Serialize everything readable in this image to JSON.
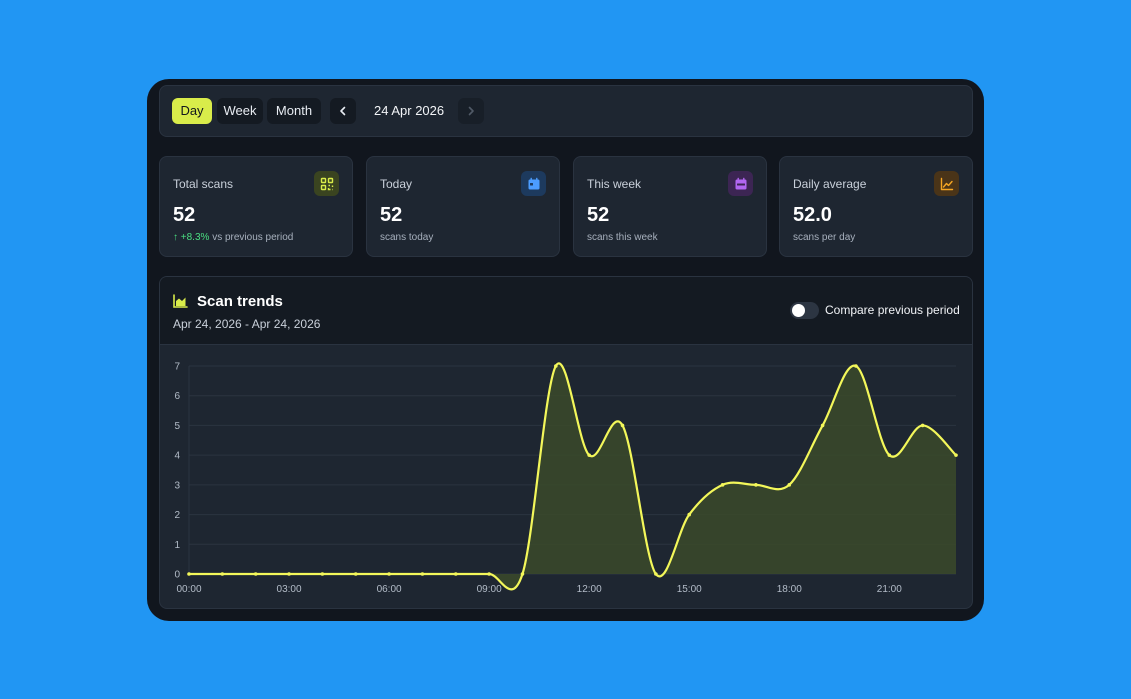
{
  "toolbar": {
    "tabs": [
      {
        "label": "Day",
        "active": true
      },
      {
        "label": "Week",
        "active": false
      },
      {
        "label": "Month",
        "active": false
      }
    ],
    "date": "24 Apr 2026",
    "prev_icon": "chevron-left-icon",
    "next_icon": "chevron-right-icon"
  },
  "stats": [
    {
      "label": "Total scans",
      "value": "52",
      "change": "+8.3%",
      "sub": "vs previous period",
      "icon": "qr-code-icon",
      "accent": "#d9ec4a"
    },
    {
      "label": "Today",
      "value": "52",
      "sub": "scans today",
      "icon": "calendar-icon",
      "accent": "#4c9dff"
    },
    {
      "label": "This week",
      "value": "52",
      "sub": "scans this week",
      "icon": "calendar-week-icon",
      "accent": "#b066f0"
    },
    {
      "label": "Daily average",
      "value": "52.0",
      "sub": "scans per day",
      "icon": "trend-chart-icon",
      "accent": "#f5a623"
    }
  ],
  "trend": {
    "title": "Scan trends",
    "range": "Apr 24, 2026 - Apr 24, 2026",
    "compare_label": "Compare previous period",
    "compare_enabled": false
  },
  "chart_data": {
    "type": "area",
    "x": [
      "00:00",
      "01:00",
      "02:00",
      "03:00",
      "04:00",
      "05:00",
      "06:00",
      "07:00",
      "08:00",
      "09:00",
      "10:00",
      "11:00",
      "12:00",
      "13:00",
      "14:00",
      "15:00",
      "16:00",
      "17:00",
      "18:00",
      "19:00",
      "20:00",
      "21:00",
      "22:00",
      "23:00"
    ],
    "values": [
      0,
      0,
      0,
      0,
      0,
      0,
      0,
      0,
      0,
      0,
      0,
      7,
      4,
      5,
      0,
      2,
      3,
      3,
      3,
      5,
      7,
      4,
      5,
      4
    ],
    "x_tick_labels": [
      "00:00",
      "03:00",
      "06:00",
      "09:00",
      "12:00",
      "15:00",
      "18:00",
      "21:00"
    ],
    "y_ticks": [
      0,
      1,
      2,
      3,
      4,
      5,
      6,
      7
    ],
    "ylim": [
      0,
      7
    ],
    "grid": true,
    "line_color": "#f3f75a"
  }
}
